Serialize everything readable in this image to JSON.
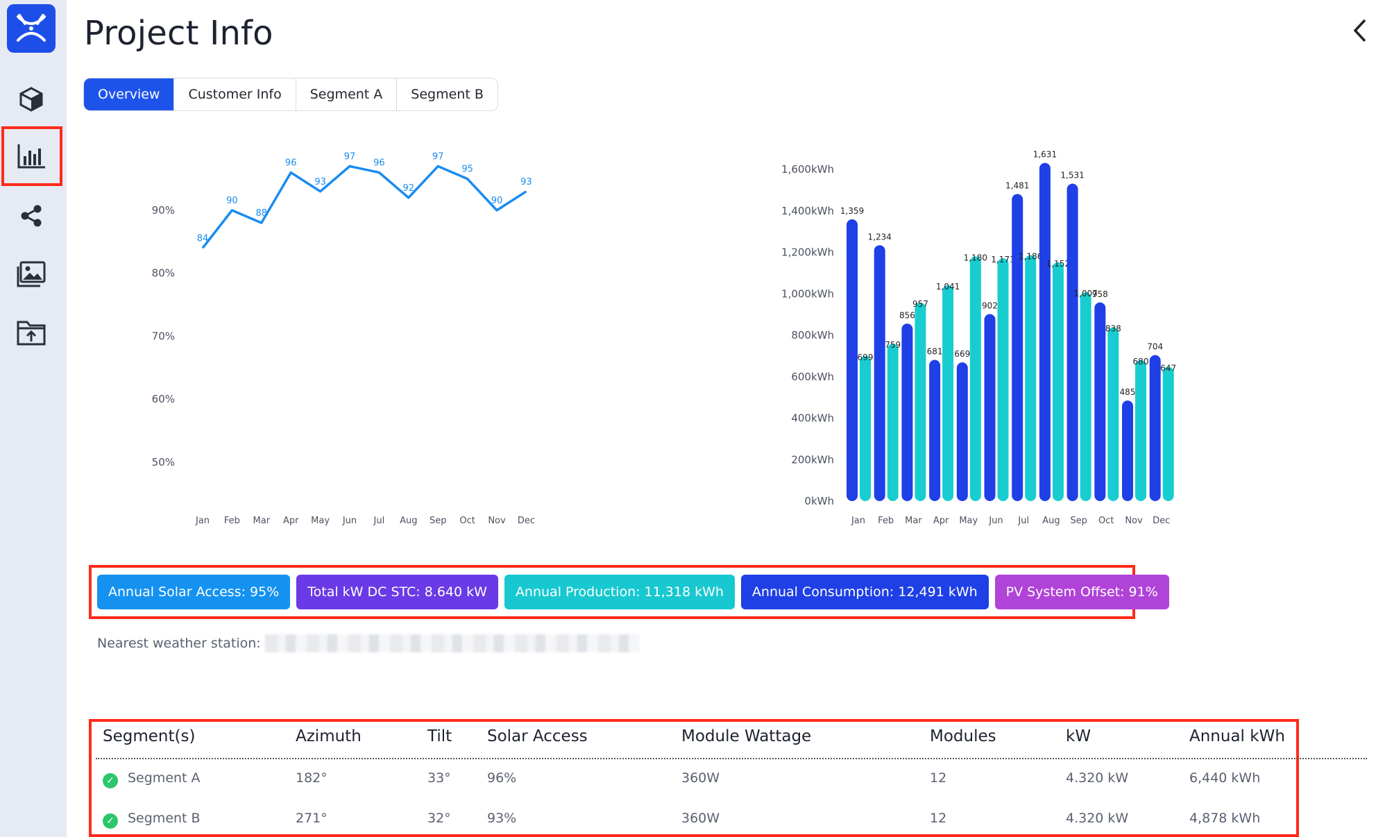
{
  "header": {
    "title": "Project Info"
  },
  "tabs": [
    {
      "label": "Overview",
      "active": true
    },
    {
      "label": "Customer Info",
      "active": false
    },
    {
      "label": "Segment A",
      "active": false
    },
    {
      "label": "Segment B",
      "active": false
    }
  ],
  "sidebar": {
    "items": [
      {
        "icon": "cube-icon"
      },
      {
        "icon": "bar-chart-icon",
        "active": true
      },
      {
        "icon": "share-icon"
      },
      {
        "icon": "gallery-icon"
      },
      {
        "icon": "upload-folder-icon"
      }
    ]
  },
  "chart_data": [
    {
      "type": "line",
      "categories": [
        "Jan",
        "Feb",
        "Mar",
        "Apr",
        "May",
        "Jun",
        "Jul",
        "Aug",
        "Sep",
        "Oct",
        "Nov",
        "Dec"
      ],
      "series": [
        {
          "values": [
            84,
            90,
            88,
            96,
            93,
            97,
            96,
            92,
            97,
            95,
            90,
            93
          ]
        }
      ],
      "ytick_labels": [
        "90%",
        "80%",
        "70%",
        "60%",
        "50%"
      ],
      "ylim": [
        50,
        98
      ],
      "color": "#1a8cf0",
      "grid": false
    },
    {
      "type": "bar",
      "categories": [
        "Jan",
        "Feb",
        "Mar",
        "Apr",
        "May",
        "Jun",
        "Jul",
        "Aug",
        "Sep",
        "Oct",
        "Nov",
        "Dec"
      ],
      "series": [
        {
          "values": [
            1359,
            1234,
            856,
            681,
            669,
            902,
            1481,
            1631,
            1531,
            958,
            485,
            704
          ],
          "color": "#1f40e6"
        },
        {
          "values": [
            699,
            759,
            957,
            1041,
            1180,
            1171,
            1186,
            1152,
            1007,
            838,
            680,
            647
          ],
          "color": "#18cdd0"
        }
      ],
      "labels": [
        [
          "1,359",
          "1,234",
          "856",
          "681",
          "669",
          "902",
          "1,481",
          "1,631",
          "1,531",
          "958",
          "485",
          "704"
        ],
        [
          "699",
          "759",
          "957",
          "1,041",
          "1,180",
          "1,171",
          "1,186",
          "1,152",
          "1,007",
          "838",
          "680",
          "647"
        ]
      ],
      "ytick_labels": [
        "1,600kWh",
        "1,400kWh",
        "1,200kWh",
        "1,000kWh",
        "800kWh",
        "600kWh",
        "400kWh",
        "200kWh",
        "0kWh"
      ],
      "ylim": [
        0,
        1600
      ],
      "grid": false
    }
  ],
  "stats": [
    {
      "label": "Annual Solar Access: 95%",
      "color": "#1592f0"
    },
    {
      "label": "Total kW DC STC: 8.640 kW",
      "color": "#6a3ae6"
    },
    {
      "label": "Annual Production: 11,318 kWh",
      "color": "#17c8d0"
    },
    {
      "label": "Annual Consumption: 12,491 kWh",
      "color": "#1f40e6"
    },
    {
      "label": "PV System Offset: 91%",
      "color": "#b043d8"
    }
  ],
  "weather": {
    "label": "Nearest weather station: "
  },
  "table": {
    "headers": [
      "Segment(s)",
      "Azimuth",
      "Tilt",
      "Solar Access",
      "Module Wattage",
      "Modules",
      "kW",
      "Annual kWh"
    ],
    "rows": [
      [
        "Segment A",
        "182°",
        "33°",
        "96%",
        "360W",
        "12",
        "4.320 kW",
        "6,440 kWh"
      ],
      [
        "Segment B",
        "271°",
        "32°",
        "93%",
        "360W",
        "12",
        "4.320 kW",
        "4,878 kWh"
      ]
    ]
  }
}
